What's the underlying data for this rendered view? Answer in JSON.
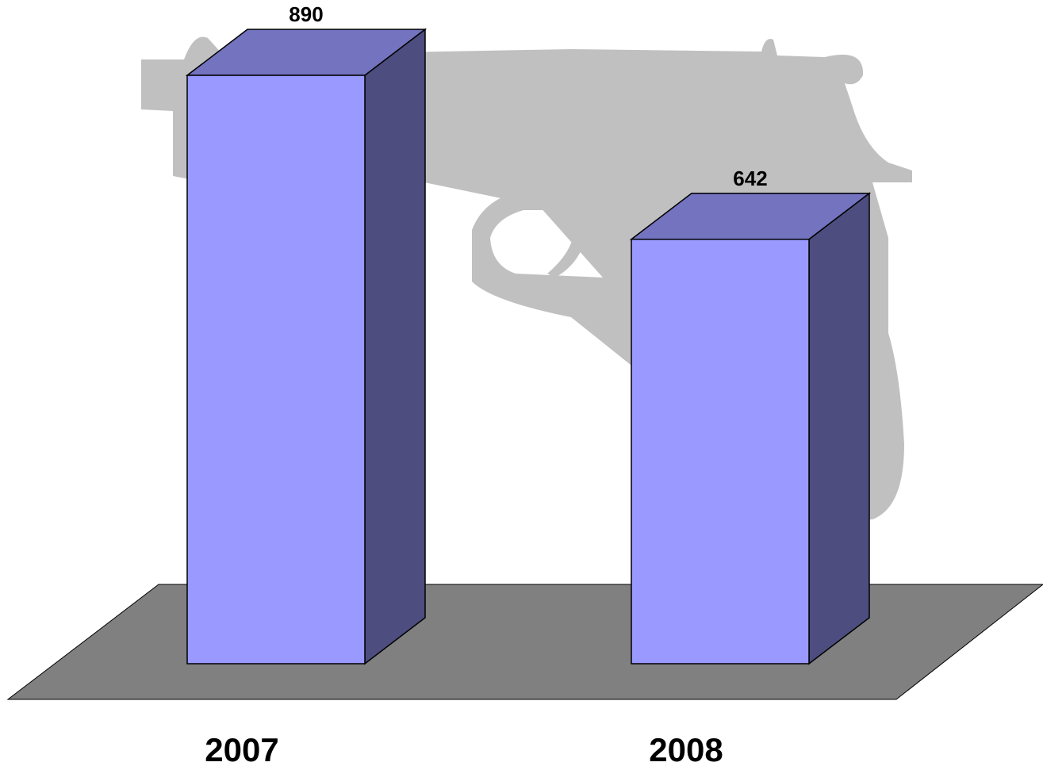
{
  "chart_data": {
    "type": "bar3d",
    "categories": [
      "2007",
      "2008"
    ],
    "values": [
      890,
      642
    ],
    "color": "#9999ff"
  }
}
